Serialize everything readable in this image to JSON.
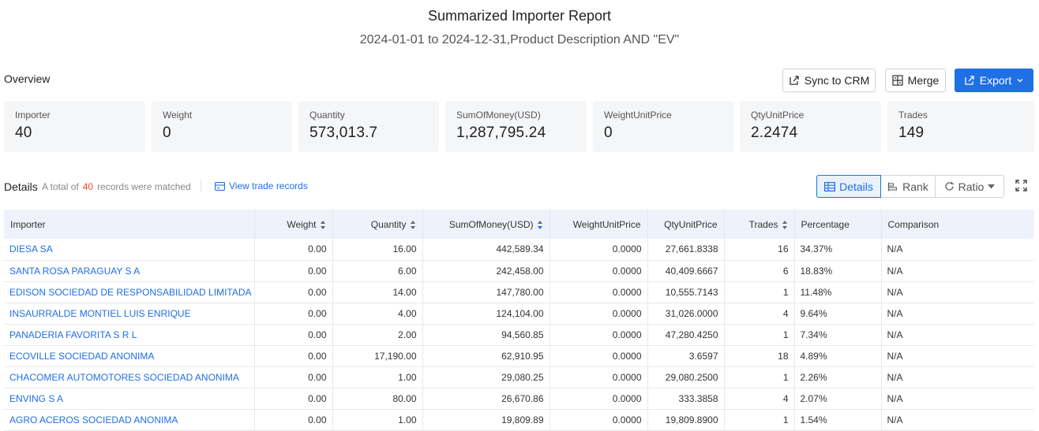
{
  "report": {
    "title": "Summarized Importer Report",
    "subtitle": "2024-01-01 to 2024-12-31,Product Description AND \"EV\""
  },
  "overview": {
    "label": "Overview",
    "cards": [
      {
        "label": "Importer",
        "value": "40"
      },
      {
        "label": "Weight",
        "value": "0"
      },
      {
        "label": "Quantity",
        "value": "573,013.7"
      },
      {
        "label": "SumOfMoney(USD)",
        "value": "1,287,795.24"
      },
      {
        "label": "WeightUnitPrice",
        "value": "0"
      },
      {
        "label": "QtyUnitPrice",
        "value": "2.2474"
      },
      {
        "label": "Trades",
        "value": "149"
      }
    ]
  },
  "toolbar": {
    "sync_label": "Sync to CRM",
    "merge_label": "Merge",
    "export_label": "Export"
  },
  "details": {
    "label": "Details",
    "total_prefix": "A total of",
    "count": "40",
    "total_suffix": "records were matched",
    "view_link": "View trade records",
    "views": {
      "details": "Details",
      "rank": "Rank",
      "ratio": "Ratio"
    }
  },
  "table": {
    "columns": [
      "Importer",
      "Weight",
      "Quantity",
      "SumOfMoney(USD)",
      "WeightUnitPrice",
      "QtyUnitPrice",
      "Trades",
      "Percentage",
      "Comparison"
    ],
    "rows": [
      [
        "DIESA SA",
        "0.00",
        "16.00",
        "442,589.34",
        "0.0000",
        "27,661.8338",
        "16",
        "34.37%",
        "N/A"
      ],
      [
        "SANTA ROSA PARAGUAY S A",
        "0.00",
        "6.00",
        "242,458.00",
        "0.0000",
        "40,409.6667",
        "6",
        "18.83%",
        "N/A"
      ],
      [
        "EDISON SOCIEDAD DE RESPONSABILIDAD LIMITADA",
        "0.00",
        "14.00",
        "147,780.00",
        "0.0000",
        "10,555.7143",
        "1",
        "11.48%",
        "N/A"
      ],
      [
        "INSAURRALDE MONTIEL LUIS ENRIQUE",
        "0.00",
        "4.00",
        "124,104.00",
        "0.0000",
        "31,026.0000",
        "4",
        "9.64%",
        "N/A"
      ],
      [
        "PANADERIA FAVORITA S R L",
        "0.00",
        "2.00",
        "94,560.85",
        "0.0000",
        "47,280.4250",
        "1",
        "7.34%",
        "N/A"
      ],
      [
        "ECOVILLE SOCIEDAD ANONIMA",
        "0.00",
        "17,190.00",
        "62,910.95",
        "0.0000",
        "3.6597",
        "18",
        "4.89%",
        "N/A"
      ],
      [
        "CHACOMER AUTOMOTORES SOCIEDAD ANONIMA",
        "0.00",
        "1.00",
        "29,080.25",
        "0.0000",
        "29,080.2500",
        "1",
        "2.26%",
        "N/A"
      ],
      [
        "ENVING S A",
        "0.00",
        "80.00",
        "26,670.86",
        "0.0000",
        "333.3858",
        "4",
        "2.07%",
        "N/A"
      ],
      [
        "AGRO ACEROS SOCIEDAD ANONIMA",
        "0.00",
        "1.00",
        "19,809.89",
        "0.0000",
        "19,809.8900",
        "1",
        "1.54%",
        "N/A"
      ]
    ]
  },
  "colors": {
    "accent": "#1f6fe5",
    "count": "#e5483a",
    "header_bg": "#eef3fb",
    "card_bg": "#f5f6f8"
  }
}
